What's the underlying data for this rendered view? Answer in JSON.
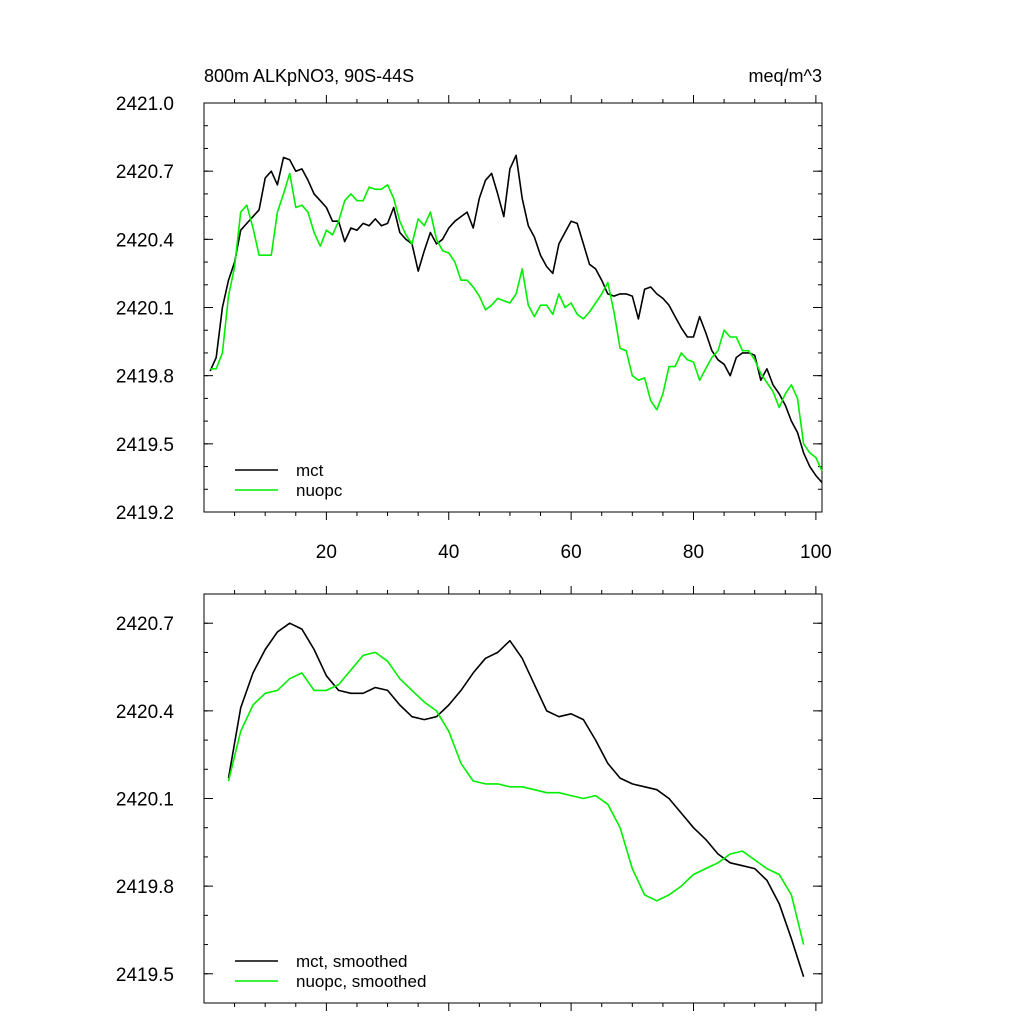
{
  "figure": {
    "title_left": "800m ALKpNO3, 90S-44S",
    "title_right": "meq/m^3"
  },
  "colors": {
    "mct": "#000000",
    "nuopc": "#00ee00"
  },
  "chart_data": [
    {
      "type": "line",
      "title": "800m ALKpNO3, 90S-44S",
      "units": "meq/m^3",
      "xlim": [
        0,
        101
      ],
      "ylim": [
        2419.2,
        2421.0
      ],
      "xticks": [
        20,
        40,
        60,
        80,
        100
      ],
      "xtick_labels": [
        "20",
        "40",
        "60",
        "80",
        "100"
      ],
      "yticks": [
        2419.2,
        2419.5,
        2419.8,
        2420.1,
        2420.4,
        2420.7,
        2421.0
      ],
      "ytick_labels": [
        "2419.2",
        "2419.5",
        "2419.8",
        "2420.1",
        "2420.4",
        "2420.7",
        "2421.0"
      ],
      "legend": [
        "mct",
        "nuopc"
      ],
      "legend_position": "bottom-left",
      "series": [
        {
          "name": "mct",
          "x": [
            1,
            2,
            3,
            4,
            5,
            6,
            7,
            8,
            9,
            10,
            11,
            12,
            13,
            14,
            15,
            16,
            17,
            18,
            19,
            20,
            21,
            22,
            23,
            24,
            25,
            26,
            27,
            28,
            29,
            30,
            31,
            32,
            33,
            34,
            35,
            36,
            37,
            38,
            39,
            40,
            41,
            42,
            43,
            44,
            45,
            46,
            47,
            48,
            49,
            50,
            51,
            52,
            53,
            54,
            55,
            56,
            57,
            58,
            59,
            60,
            61,
            62,
            63,
            64,
            65,
            66,
            67,
            68,
            69,
            70,
            71,
            72,
            73,
            74,
            75,
            76,
            77,
            78,
            79,
            80,
            81,
            82,
            83,
            84,
            85,
            86,
            87,
            88,
            89,
            90,
            91,
            92,
            93,
            94,
            95,
            96,
            97,
            98,
            99,
            100,
            101
          ],
          "y": [
            2419.82,
            2419.88,
            2420.1,
            2420.22,
            2420.3,
            2420.44,
            2420.47,
            2420.5,
            2420.53,
            2420.67,
            2420.7,
            2420.64,
            2420.76,
            2420.75,
            2420.7,
            2420.71,
            2420.66,
            2420.6,
            2420.57,
            2420.54,
            2420.48,
            2420.48,
            2420.39,
            2420.45,
            2420.44,
            2420.47,
            2420.46,
            2420.49,
            2420.46,
            2420.47,
            2420.54,
            2420.43,
            2420.4,
            2420.38,
            2420.26,
            2420.35,
            2420.43,
            2420.38,
            2420.4,
            2420.45,
            2420.48,
            2420.5,
            2420.52,
            2420.45,
            2420.58,
            2420.66,
            2420.69,
            2420.6,
            2420.5,
            2420.71,
            2420.77,
            2420.58,
            2420.46,
            2420.41,
            2420.33,
            2420.28,
            2420.25,
            2420.38,
            2420.43,
            2420.48,
            2420.47,
            2420.38,
            2420.29,
            2420.27,
            2420.22,
            2420.16,
            2420.15,
            2420.16,
            2420.16,
            2420.15,
            2420.05,
            2420.18,
            2420.19,
            2420.16,
            2420.14,
            2420.11,
            2420.06,
            2420.01,
            2419.97,
            2419.97,
            2420.06,
            2419.99,
            2419.91,
            2419.87,
            2419.85,
            2419.8,
            2419.88,
            2419.9,
            2419.9,
            2419.89,
            2419.78,
            2419.83,
            2419.76,
            2419.72,
            2419.67,
            2419.6,
            2419.55,
            2419.46,
            2419.4,
            2419.36,
            2419.33
          ]
        },
        {
          "name": "nuopc",
          "x": [
            1,
            2,
            3,
            4,
            5,
            6,
            7,
            8,
            9,
            10,
            11,
            12,
            13,
            14,
            15,
            16,
            17,
            18,
            19,
            20,
            21,
            22,
            23,
            24,
            25,
            26,
            27,
            28,
            29,
            30,
            31,
            32,
            33,
            34,
            35,
            36,
            37,
            38,
            39,
            40,
            41,
            42,
            43,
            44,
            45,
            46,
            47,
            48,
            49,
            50,
            51,
            52,
            53,
            54,
            55,
            56,
            57,
            58,
            59,
            60,
            61,
            62,
            63,
            64,
            65,
            66,
            67,
            68,
            69,
            70,
            71,
            72,
            73,
            74,
            75,
            76,
            77,
            78,
            79,
            80,
            81,
            82,
            83,
            84,
            85,
            86,
            87,
            88,
            89,
            90,
            91,
            92,
            93,
            94,
            95,
            96,
            97,
            98,
            99,
            100,
            101
          ],
          "y": [
            2419.83,
            2419.83,
            2419.9,
            2420.15,
            2420.28,
            2420.52,
            2420.55,
            2420.45,
            2420.33,
            2420.33,
            2420.33,
            2420.52,
            2420.6,
            2420.69,
            2420.54,
            2420.55,
            2420.52,
            2420.43,
            2420.37,
            2420.44,
            2420.42,
            2420.48,
            2420.57,
            2420.6,
            2420.57,
            2420.57,
            2420.63,
            2420.62,
            2420.62,
            2420.64,
            2420.58,
            2420.48,
            2420.42,
            2420.38,
            2420.49,
            2420.46,
            2420.52,
            2420.4,
            2420.35,
            2420.34,
            2420.3,
            2420.22,
            2420.22,
            2420.19,
            2420.15,
            2420.09,
            2420.11,
            2420.14,
            2420.13,
            2420.12,
            2420.16,
            2420.27,
            2420.11,
            2420.06,
            2420.11,
            2420.11,
            2420.07,
            2420.16,
            2420.1,
            2420.12,
            2420.07,
            2420.05,
            2420.08,
            2420.12,
            2420.16,
            2420.21,
            2420.08,
            2419.92,
            2419.91,
            2419.8,
            2419.78,
            2419.79,
            2419.69,
            2419.65,
            2419.72,
            2419.84,
            2419.84,
            2419.9,
            2419.87,
            2419.86,
            2419.78,
            2419.83,
            2419.88,
            2419.91,
            2420.0,
            2419.97,
            2419.97,
            2419.91,
            2419.91,
            2419.87,
            2419.81,
            2419.77,
            2419.73,
            2419.66,
            2419.72,
            2419.76,
            2419.7,
            2419.5,
            2419.46,
            2419.44,
            2419.38
          ]
        }
      ]
    },
    {
      "type": "line",
      "xlim": [
        0,
        101
      ],
      "ylim": [
        2419.4,
        2420.8
      ],
      "xticks": [
        20,
        40,
        60,
        80,
        100
      ],
      "yticks": [
        2419.5,
        2419.8,
        2420.1,
        2420.4,
        2420.7
      ],
      "ytick_labels": [
        "2419.5",
        "2419.8",
        "2420.1",
        "2420.4",
        "2420.7"
      ],
      "legend": [
        "mct, smoothed",
        "nuopc, smoothed"
      ],
      "legend_position": "bottom-left",
      "series": [
        {
          "name": "mct, smoothed",
          "x": [
            4,
            6,
            8,
            10,
            12,
            14,
            16,
            18,
            20,
            22,
            24,
            26,
            28,
            30,
            32,
            34,
            36,
            38,
            40,
            42,
            44,
            46,
            48,
            50,
            52,
            54,
            56,
            58,
            60,
            62,
            64,
            66,
            68,
            70,
            72,
            74,
            76,
            78,
            80,
            82,
            84,
            86,
            88,
            90,
            92,
            94,
            96,
            98
          ],
          "y": [
            2420.17,
            2420.41,
            2420.53,
            2420.61,
            2420.67,
            2420.7,
            2420.68,
            2420.61,
            2420.52,
            2420.47,
            2420.46,
            2420.46,
            2420.48,
            2420.47,
            2420.42,
            2420.38,
            2420.37,
            2420.38,
            2420.42,
            2420.47,
            2420.53,
            2420.58,
            2420.6,
            2420.64,
            2420.58,
            2420.49,
            2420.4,
            2420.38,
            2420.39,
            2420.37,
            2420.3,
            2420.22,
            2420.17,
            2420.15,
            2420.14,
            2420.13,
            2420.1,
            2420.05,
            2420.0,
            2419.96,
            2419.91,
            2419.88,
            2419.87,
            2419.86,
            2419.82,
            2419.74,
            2419.62,
            2419.49
          ]
        },
        {
          "name": "nuopc, smoothed",
          "x": [
            4,
            6,
            8,
            10,
            12,
            14,
            16,
            18,
            20,
            22,
            24,
            26,
            28,
            30,
            32,
            34,
            36,
            38,
            40,
            42,
            44,
            46,
            48,
            50,
            52,
            54,
            56,
            58,
            60,
            62,
            64,
            66,
            68,
            70,
            72,
            74,
            76,
            78,
            80,
            82,
            84,
            86,
            88,
            90,
            92,
            94,
            96,
            98
          ],
          "y": [
            2420.16,
            2420.33,
            2420.42,
            2420.46,
            2420.47,
            2420.51,
            2420.53,
            2420.47,
            2420.47,
            2420.49,
            2420.54,
            2420.59,
            2420.6,
            2420.57,
            2420.51,
            2420.47,
            2420.43,
            2420.4,
            2420.33,
            2420.22,
            2420.16,
            2420.15,
            2420.15,
            2420.14,
            2420.14,
            2420.13,
            2420.12,
            2420.12,
            2420.11,
            2420.1,
            2420.11,
            2420.08,
            2420.0,
            2419.86,
            2419.77,
            2419.75,
            2419.77,
            2419.8,
            2419.84,
            2419.86,
            2419.88,
            2419.91,
            2419.92,
            2419.89,
            2419.86,
            2419.84,
            2419.77,
            2419.6
          ]
        }
      ]
    }
  ]
}
